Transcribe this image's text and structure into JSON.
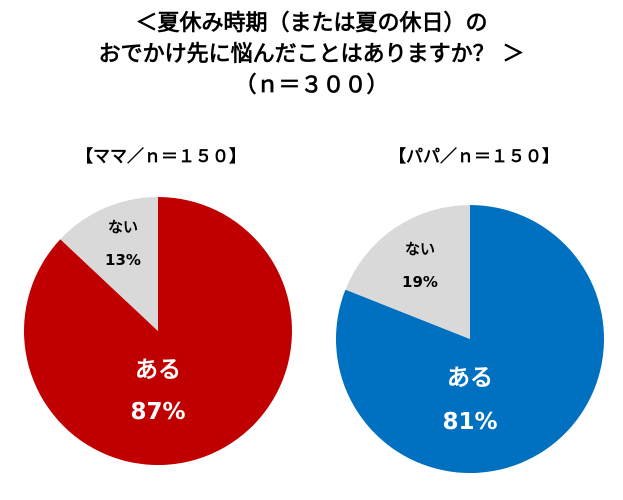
{
  "header": {
    "title_lines": [
      "＜夏休み時期（または夏の休日）の",
      "おでかけ先に悩んだことはありますか？ ＞",
      "（ｎ＝３００）"
    ]
  },
  "chart_data": [
    {
      "type": "pie",
      "title": "【ママ／ｎ＝１５０】",
      "slices": [
        {
          "label": "ある",
          "value": 87,
          "value_text": "87%",
          "color": "#C00000",
          "label_color": "#FFFFFF"
        },
        {
          "label": "ない",
          "value": 13,
          "value_text": "13%",
          "color": "#D9D9D9",
          "label_color": "#000000"
        }
      ]
    },
    {
      "type": "pie",
      "title": "【パパ／ｎ＝１５０】",
      "slices": [
        {
          "label": "ある",
          "value": 81,
          "value_text": "81%",
          "color": "#0070C0",
          "label_color": "#FFFFFF"
        },
        {
          "label": "ない",
          "value": 19,
          "value_text": "19%",
          "color": "#D9D9D9",
          "label_color": "#000000"
        }
      ]
    }
  ]
}
